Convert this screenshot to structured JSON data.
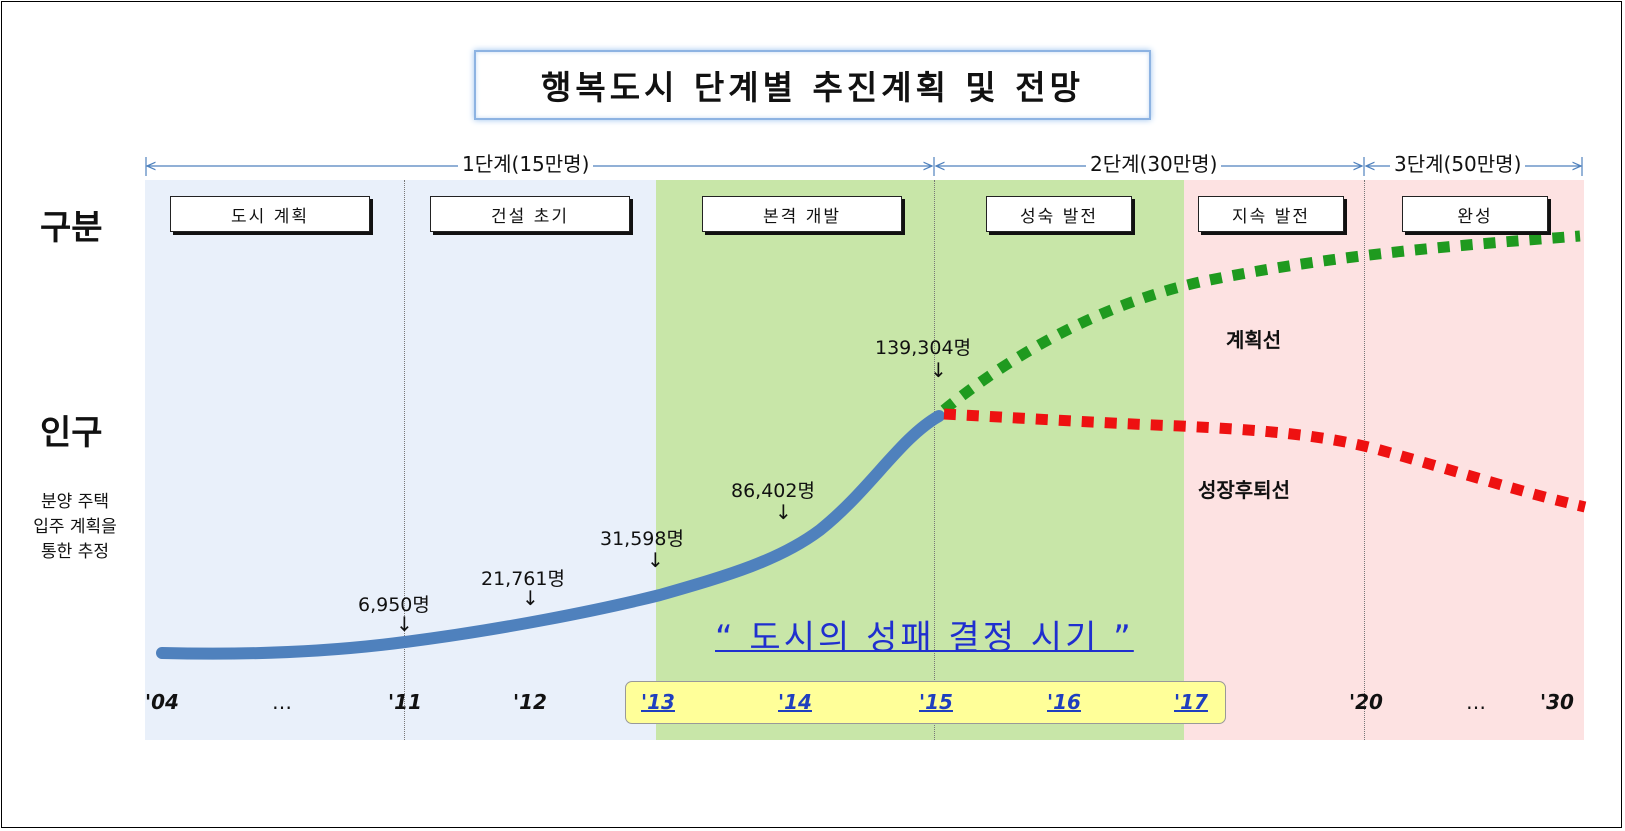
{
  "title": "행복도시 단계별 추진계획 및 전망",
  "row_labels": {
    "phase": "구분",
    "population": "인구"
  },
  "note": [
    "분양 주택",
    "입주 계획을",
    "통한 추정"
  ],
  "stages": [
    "1단계(15만명)",
    "2단계(30만명)",
    "3단계(50만명)"
  ],
  "phases": [
    "도시 계획",
    "건설 초기",
    "본격 개발",
    "성숙 발전",
    "지속 발전",
    "완성"
  ],
  "years": [
    "'04",
    "…",
    "'11",
    "'12",
    "'13",
    "'14",
    "'15",
    "'16",
    "'17",
    "'20",
    "…",
    "'30"
  ],
  "populations": [
    "6,950명",
    "21,761명",
    "31,598명",
    "86,402명",
    "139,304명"
  ],
  "slogan": "“ 도시의 성패 결정 시기 ”",
  "line_labels": {
    "plan": "계획선",
    "decline": "성장후퇴선"
  },
  "colors": {
    "blue_band": "#e9f0fa",
    "green_band": "#c8e6a8",
    "pink_band": "#fde2e2",
    "actual_line": "#4f81bd",
    "plan_line": "#1f9a1f",
    "decline_line": "#ee1111",
    "highlight": "#ffff99",
    "slogan": "#1f2fcf",
    "title_border": "#8db3e2"
  }
}
